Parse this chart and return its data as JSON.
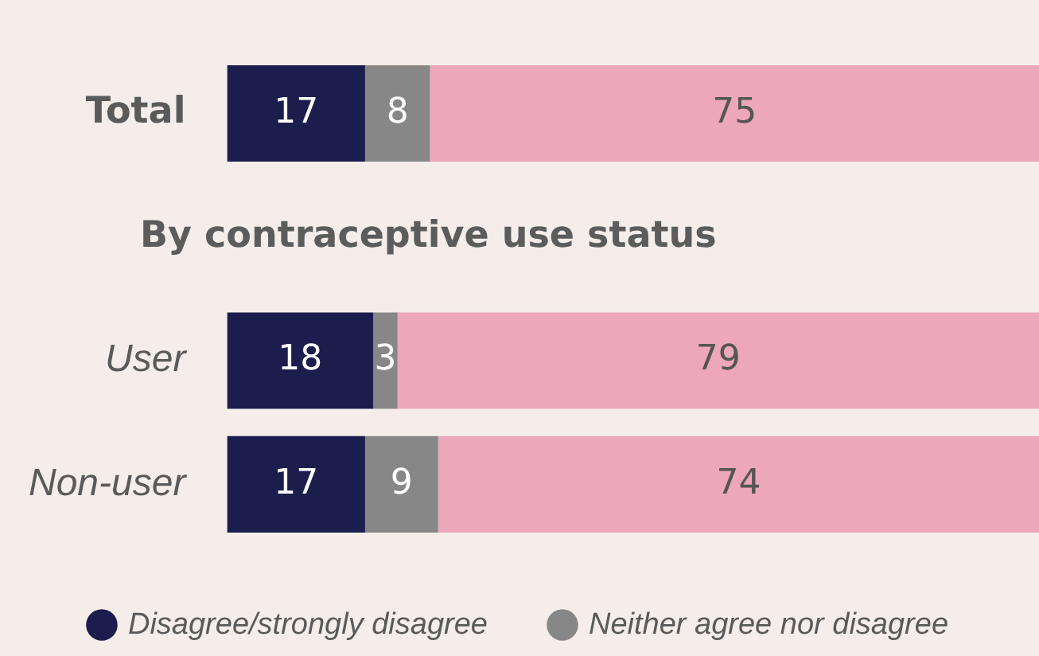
{
  "chart_data": {
    "type": "bar",
    "orientation": "horizontal",
    "stacked": true,
    "categories": [
      "Total",
      null,
      "User",
      "Non-user"
    ],
    "series": [
      {
        "name": "Disagree/strongly disagree",
        "color": "#1b1e4d",
        "values": [
          17,
          null,
          18,
          17
        ]
      },
      {
        "name": "Neither agree nor disagree",
        "color": "#878787",
        "values": [
          8,
          null,
          3,
          9
        ]
      },
      {
        "color": "#eca7ba",
        "values": [
          75,
          null,
          79,
          74
        ]
      }
    ],
    "data_labels": true,
    "annotations": [
      "By contraceptive use status"
    ],
    "legend": "bottom"
  }
}
